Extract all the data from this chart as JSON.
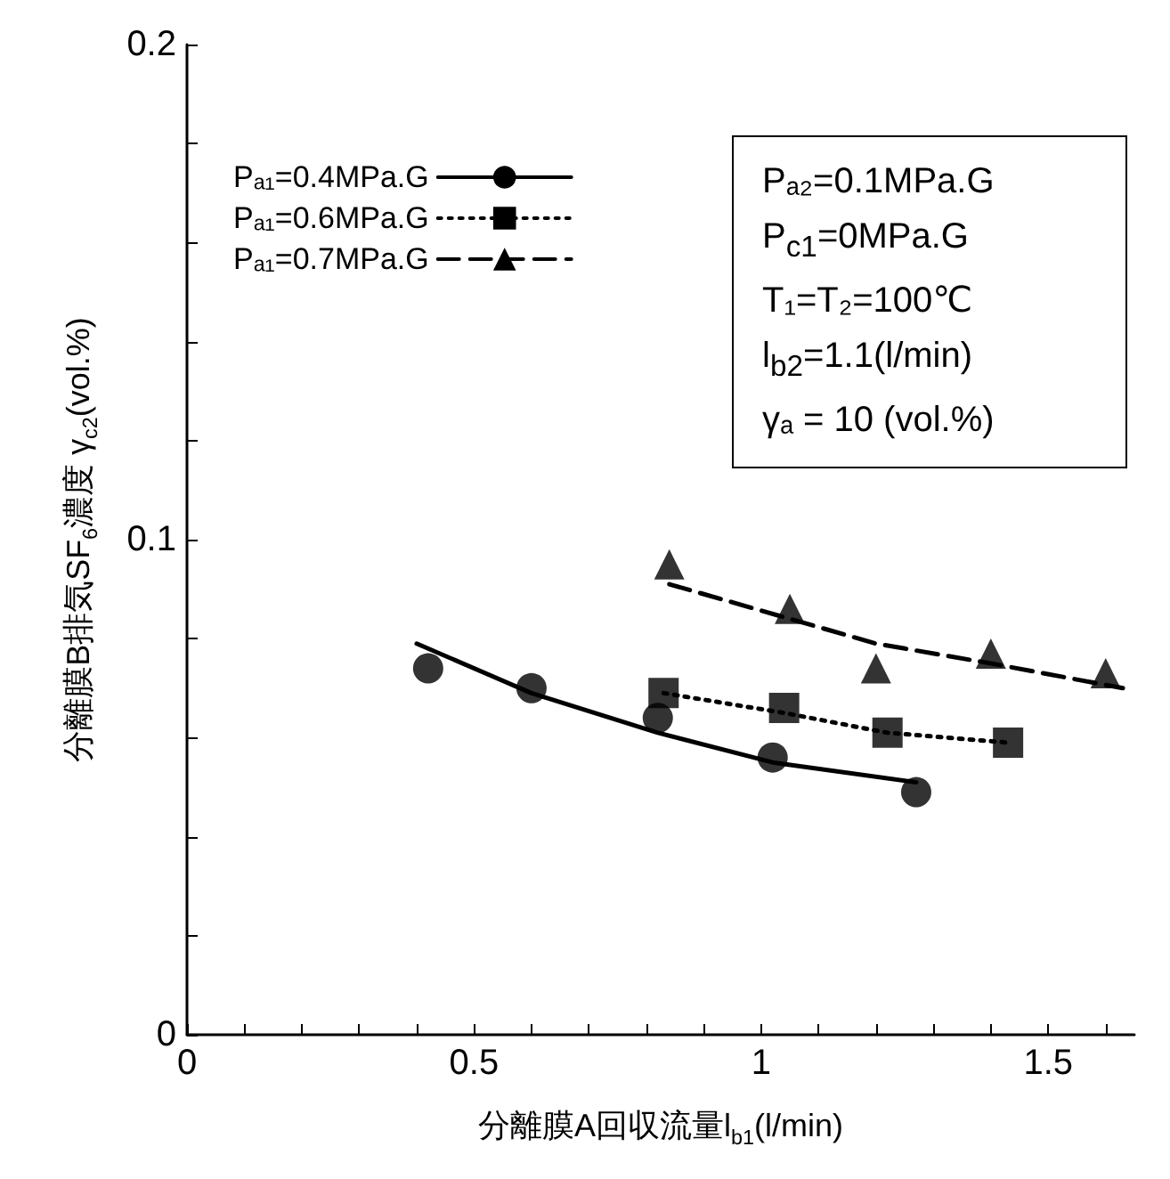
{
  "chart_data": {
    "type": "scatter",
    "xlabel": "分離膜A回収流量l$_{b1}$(l/min)",
    "ylabel": "分離膜B排気SF$_{6}$濃度 γ$_{c2}$(vol.%)",
    "xlim": [
      0,
      1.65
    ],
    "ylim": [
      0,
      0.2
    ],
    "xticks": [
      0,
      {
        "value": 0.1,
        "label": null
      },
      {
        "value": 0.2,
        "label": null
      },
      {
        "value": 0.3,
        "label": null
      },
      {
        "value": 0.4,
        "label": null
      },
      0.5,
      {
        "value": 0.6,
        "label": null
      },
      {
        "value": 0.7,
        "label": null
      },
      {
        "value": 0.8,
        "label": null
      },
      {
        "value": 0.9,
        "label": null
      },
      1,
      {
        "value": 1.1,
        "label": null
      },
      {
        "value": 1.2,
        "label": null
      },
      {
        "value": 1.3,
        "label": null
      },
      {
        "value": 1.4,
        "label": null
      },
      1.5,
      {
        "value": 1.6,
        "label": null
      }
    ],
    "yticks": [
      0,
      {
        "value": 0.02,
        "label": null
      },
      {
        "value": 0.04,
        "label": null
      },
      {
        "value": 0.06,
        "label": null
      },
      {
        "value": 0.08,
        "label": null
      },
      0.1,
      {
        "value": 0.12,
        "label": null
      },
      {
        "value": 0.14,
        "label": null
      },
      {
        "value": 0.16,
        "label": null
      },
      {
        "value": 0.18,
        "label": null
      },
      0.2
    ],
    "grid": false,
    "legend": "top left",
    "series": [
      {
        "name": "Pₐ₁=0.4MPa.G",
        "marker": "circle",
        "color": "#000000",
        "x": [
          0.42,
          0.6,
          0.82,
          1.02,
          1.27
        ],
        "values": [
          0.074,
          0.07,
          0.064,
          0.056,
          0.049
        ]
      },
      {
        "type": "line",
        "line_style": "solid",
        "color": "#000000",
        "x": [
          0.4,
          0.6,
          0.82,
          1.02,
          1.27
        ],
        "values": [
          0.079,
          0.069,
          0.061,
          0.055,
          0.051
        ]
      },
      {
        "name": "Pₐ₁=0.6MPa.G",
        "marker": "square",
        "color": "#000000",
        "x": [
          0.83,
          1.04,
          1.22,
          1.43
        ],
        "values": [
          0.069,
          0.066,
          0.061,
          0.059
        ]
      },
      {
        "type": "line",
        "line_style": "dotted",
        "color": "#000000",
        "x": [
          0.83,
          1.04,
          1.22,
          1.43
        ],
        "values": [
          0.069,
          0.065,
          0.061,
          0.059
        ]
      },
      {
        "name": "Pₐ₁=0.7MPa.G",
        "marker": "triangle",
        "color": "#000000",
        "x": [
          0.84,
          1.05,
          1.2,
          1.4,
          1.6
        ],
        "values": [
          0.095,
          0.086,
          0.074,
          0.077,
          0.073
        ]
      },
      {
        "type": "line",
        "line_style": "dashed",
        "color": "#000000",
        "x": [
          0.84,
          1.05,
          1.2,
          1.4,
          1.63
        ],
        "values": [
          0.091,
          0.084,
          0.079,
          0.075,
          0.07
        ]
      }
    ],
    "annotations": [
      "Pₐ₂=0.1MPa.G",
      "P$_{c1}$=0MPa.G",
      "T₁=T₂=100℃",
      "l$_{b2}$=1.1(l/min)",
      "γₐ = 10 (vol.%)"
    ]
  }
}
